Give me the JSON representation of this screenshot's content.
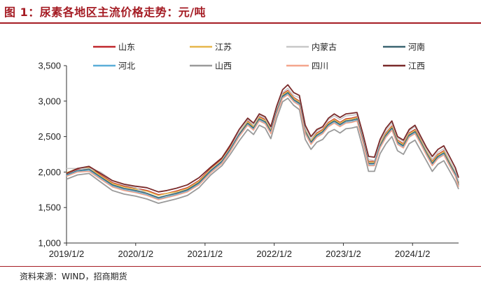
{
  "header": {
    "title": "图 1：尿素各地区主流价格走势：元/吨"
  },
  "footer": {
    "source": "资料来源：WIND，招商期货"
  },
  "chart_data": {
    "type": "line",
    "title": "图 1：尿素各地区主流价格走势：元/吨",
    "xlabel": "",
    "ylabel": "",
    "ylim": [
      1000,
      3500
    ],
    "yticks": [
      "1,000",
      "1,500",
      "2,000",
      "2,500",
      "3,000",
      "3,500"
    ],
    "ytick_values": [
      1000,
      1500,
      2000,
      2500,
      3000,
      3500
    ],
    "xticks": [
      "2019/1/2",
      "2020/1/2",
      "2021/1/2",
      "2022/1/2",
      "2023/1/2",
      "2024/1/2"
    ],
    "x_start": "2019/1/2",
    "x_end": "2024/9/1",
    "grid": false,
    "legend_position": "top",
    "x": [
      "2019/1/2",
      "2019/3/1",
      "2019/5/1",
      "2019/7/1",
      "2019/9/1",
      "2019/11/1",
      "2020/1/2",
      "2020/3/1",
      "2020/5/1",
      "2020/6/15",
      "2020/8/1",
      "2020/10/1",
      "2020/12/1",
      "2021/2/1",
      "2021/4/1",
      "2021/5/15",
      "2021/7/1",
      "2021/8/15",
      "2021/9/15",
      "2021/10/15",
      "2021/11/15",
      "2021/12/15",
      "2022/1/15",
      "2022/2/15",
      "2022/3/15",
      "2022/4/15",
      "2022/5/15",
      "2022/6/15",
      "2022/7/15",
      "2022/8/15",
      "2022/9/15",
      "2022/10/15",
      "2022/11/15",
      "2022/12/15",
      "2023/1/15",
      "2023/2/15",
      "2023/3/15",
      "2023/4/15",
      "2023/5/15",
      "2023/6/15",
      "2023/7/15",
      "2023/8/15",
      "2023/9/15",
      "2023/10/15",
      "2023/11/15",
      "2023/12/15",
      "2024/1/15",
      "2024/2/15",
      "2024/3/15",
      "2024/4/15",
      "2024/5/15",
      "2024/6/15",
      "2024/7/15",
      "2024/8/15",
      "2024/9/1"
    ],
    "series": [
      {
        "name": "山东",
        "color": "#c0282d",
        "width": 1.6,
        "values": [
          1980,
          2040,
          2070,
          1960,
          1850,
          1800,
          1770,
          1740,
          1680,
          1700,
          1730,
          1780,
          1880,
          2050,
          2180,
          2350,
          2560,
          2720,
          2650,
          2780,
          2740,
          2600,
          2880,
          3100,
          3150,
          3050,
          3000,
          2600,
          2450,
          2550,
          2600,
          2700,
          2750,
          2700,
          2750,
          2760,
          2780,
          2480,
          2150,
          2150,
          2400,
          2550,
          2650,
          2450,
          2400,
          2550,
          2600,
          2450,
          2300,
          2150,
          2250,
          2300,
          2150,
          2000,
          1850
        ]
      },
      {
        "name": "江苏",
        "color": "#e6b64a",
        "width": 1.6,
        "values": [
          1990,
          2050,
          2060,
          1950,
          1840,
          1790,
          1760,
          1730,
          1670,
          1700,
          1720,
          1770,
          1870,
          2040,
          2170,
          2340,
          2550,
          2710,
          2640,
          2770,
          2730,
          2590,
          2870,
          3090,
          3140,
          3040,
          2990,
          2590,
          2440,
          2540,
          2590,
          2690,
          2740,
          2690,
          2740,
          2750,
          2770,
          2470,
          2140,
          2140,
          2390,
          2540,
          2640,
          2440,
          2390,
          2540,
          2590,
          2440,
          2290,
          2140,
          2240,
          2290,
          2140,
          1990,
          1840
        ]
      },
      {
        "name": "内蒙古",
        "color": "#c8c8c8",
        "width": 1.6,
        "values": [
          2050,
          2050,
          2050,
          2000,
          1880,
          1820,
          1780,
          1700,
          1630,
          1650,
          1690,
          1730,
          1840,
          2030,
          2160,
          2330,
          2560,
          2740,
          2660,
          2800,
          2760,
          2620,
          2900,
          3120,
          3180,
          3080,
          3050,
          2620,
          2460,
          2580,
          2630,
          2740,
          2790,
          2740,
          2790,
          2800,
          2810,
          2510,
          2180,
          2160,
          2420,
          2590,
          2690,
          2480,
          2430,
          2580,
          2640,
          2480,
          2320,
          2180,
          2280,
          2330,
          2170,
          2010,
          1870
        ]
      },
      {
        "name": "河南",
        "color": "#3a6470",
        "width": 1.6,
        "values": [
          1960,
          2020,
          2040,
          1930,
          1820,
          1770,
          1740,
          1700,
          1640,
          1670,
          1700,
          1750,
          1850,
          2020,
          2150,
          2320,
          2530,
          2690,
          2620,
          2750,
          2710,
          2570,
          2850,
          3070,
          3120,
          3020,
          2970,
          2570,
          2420,
          2520,
          2570,
          2670,
          2720,
          2670,
          2720,
          2730,
          2750,
          2450,
          2120,
          2120,
          2370,
          2520,
          2620,
          2420,
          2370,
          2520,
          2570,
          2420,
          2270,
          2120,
          2220,
          2270,
          2120,
          1970,
          1820
        ]
      },
      {
        "name": "河北",
        "color": "#5aaed8",
        "width": 1.6,
        "values": [
          1950,
          2010,
          2020,
          1910,
          1800,
          1750,
          1720,
          1680,
          1620,
          1650,
          1680,
          1730,
          1830,
          2000,
          2130,
          2300,
          2510,
          2670,
          2600,
          2730,
          2690,
          2550,
          2830,
          3050,
          3100,
          3000,
          2950,
          2550,
          2400,
          2500,
          2550,
          2650,
          2700,
          2650,
          2700,
          2710,
          2730,
          2430,
          2100,
          2100,
          2350,
          2500,
          2600,
          2400,
          2350,
          2500,
          2550,
          2400,
          2250,
          2100,
          2200,
          2250,
          2100,
          1950,
          1800
        ]
      },
      {
        "name": "山西",
        "color": "#9a9a9a",
        "width": 1.8,
        "values": [
          1900,
          1960,
          1980,
          1860,
          1740,
          1690,
          1660,
          1620,
          1560,
          1590,
          1620,
          1670,
          1780,
          1960,
          2090,
          2250,
          2440,
          2600,
          2530,
          2660,
          2620,
          2470,
          2760,
          2990,
          3040,
          2940,
          2880,
          2460,
          2320,
          2420,
          2460,
          2560,
          2600,
          2550,
          2610,
          2620,
          2640,
          2340,
          2010,
          2010,
          2260,
          2400,
          2500,
          2300,
          2250,
          2400,
          2450,
          2300,
          2160,
          2010,
          2110,
          2160,
          2020,
          1870,
          1760
        ]
      },
      {
        "name": "四川",
        "color": "#f4a58c",
        "width": 1.6,
        "values": [
          1940,
          2000,
          2010,
          1900,
          1790,
          1740,
          1710,
          1670,
          1610,
          1640,
          1670,
          1720,
          1820,
          1990,
          2120,
          2290,
          2500,
          2660,
          2590,
          2720,
          2680,
          2540,
          2820,
          3040,
          3090,
          2990,
          2940,
          2540,
          2390,
          2490,
          2540,
          2640,
          2690,
          2640,
          2690,
          2700,
          2720,
          2420,
          2090,
          2090,
          2340,
          2490,
          2590,
          2390,
          2340,
          2490,
          2540,
          2390,
          2240,
          2090,
          2190,
          2240,
          2090,
          1940,
          1790
        ]
      },
      {
        "name": "江西",
        "color": "#7a2a2a",
        "width": 1.8,
        "values": [
          1980,
          2050,
          2080,
          1980,
          1880,
          1830,
          1800,
          1780,
          1720,
          1740,
          1770,
          1820,
          1920,
          2070,
          2200,
          2380,
          2600,
          2760,
          2690,
          2820,
          2780,
          2640,
          2930,
          3160,
          3230,
          3120,
          3080,
          2660,
          2500,
          2600,
          2640,
          2760,
          2820,
          2770,
          2820,
          2830,
          2840,
          2540,
          2220,
          2210,
          2460,
          2620,
          2720,
          2500,
          2450,
          2600,
          2660,
          2500,
          2350,
          2220,
          2320,
          2370,
          2220,
          2060,
          1920
        ]
      }
    ]
  }
}
